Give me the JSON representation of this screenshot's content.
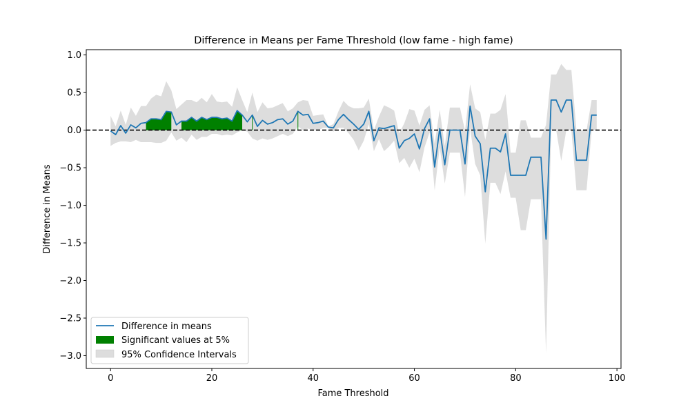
{
  "chart_data": {
    "type": "line",
    "title": "Difference in Means per Fame Threshold (low fame - high fame)",
    "xlabel": "Fame Threshold",
    "ylabel": "Difference in Means",
    "xlim": [
      -4.8,
      100.8
    ],
    "ylim": [
      -3.17,
      1.07
    ],
    "xticks": [
      0,
      20,
      40,
      60,
      80,
      100
    ],
    "yticks": [
      1.0,
      0.5,
      0.0,
      -0.5,
      -1.0,
      -1.5,
      -2.0,
      -2.5,
      -3.0
    ],
    "grid": false,
    "legend_position": "lower-left",
    "reference_line": {
      "y": 0,
      "style": "dashed",
      "color": "#000000"
    },
    "colors": {
      "line": "#1f77b4",
      "significant": "#008000",
      "ci": "#dddddd"
    },
    "legend": [
      {
        "label": "Difference in means",
        "kind": "line"
      },
      {
        "label": "Significant values at 5%",
        "kind": "fill-significant"
      },
      {
        "label": "95% Confidence Intervals",
        "kind": "fill-ci"
      }
    ],
    "x": [
      0,
      1,
      2,
      3,
      4,
      5,
      6,
      7,
      8,
      9,
      10,
      11,
      12,
      13,
      14,
      15,
      16,
      17,
      18,
      19,
      20,
      21,
      22,
      23,
      24,
      25,
      26,
      27,
      28,
      29,
      30,
      31,
      32,
      33,
      34,
      35,
      36,
      37,
      38,
      39,
      40,
      41,
      42,
      43,
      44,
      45,
      46,
      47,
      48,
      49,
      50,
      51,
      52,
      53,
      54,
      55,
      56,
      57,
      58,
      59,
      60,
      61,
      62,
      63,
      64,
      65,
      66,
      67,
      68,
      69,
      70,
      71,
      72,
      73,
      74,
      75,
      76,
      77,
      78,
      79,
      80,
      81,
      82,
      83,
      84,
      85,
      86,
      87,
      88,
      89,
      90,
      91,
      92,
      93,
      94,
      95,
      96
    ],
    "series": [
      {
        "values": [
          -0.01,
          -0.06,
          0.06,
          -0.04,
          0.07,
          0.03,
          0.09,
          0.1,
          0.15,
          0.15,
          0.14,
          0.25,
          0.24,
          0.07,
          0.12,
          0.12,
          0.17,
          0.12,
          0.17,
          0.14,
          0.17,
          0.17,
          0.15,
          0.16,
          0.12,
          0.26,
          0.2,
          0.11,
          0.2,
          0.05,
          0.13,
          0.08,
          0.1,
          0.14,
          0.15,
          0.08,
          0.12,
          0.25,
          0.2,
          0.21,
          0.09,
          0.1,
          0.12,
          0.04,
          0.03,
          0.14,
          0.21,
          0.14,
          0.08,
          0.01,
          0.08,
          0.25,
          -0.14,
          0.03,
          0.02,
          0.04,
          0.06,
          -0.24,
          -0.14,
          -0.11,
          -0.05,
          -0.25,
          0.02,
          0.15,
          -0.49,
          0.02,
          -0.46,
          0.0,
          0.0,
          0.0,
          -0.45,
          0.32,
          -0.08,
          -0.18,
          -0.82,
          -0.24,
          -0.24,
          -0.29,
          -0.05,
          -0.6,
          -0.6,
          -0.6,
          -0.6,
          -0.36,
          -0.36,
          -0.36,
          -1.45,
          0.4,
          0.4,
          0.24,
          0.4,
          0.4,
          -0.4,
          -0.4,
          -0.4,
          0.2,
          0.2
        ],
        "ci_low": [
          -0.21,
          -0.17,
          -0.15,
          -0.15,
          -0.16,
          -0.13,
          -0.16,
          -0.16,
          -0.16,
          -0.17,
          -0.17,
          -0.14,
          -0.03,
          -0.14,
          -0.1,
          -0.16,
          -0.06,
          -0.13,
          -0.09,
          -0.09,
          -0.05,
          -0.05,
          -0.07,
          -0.06,
          -0.07,
          -0.03,
          0.0,
          -0.02,
          -0.11,
          -0.14,
          -0.11,
          -0.13,
          -0.11,
          -0.08,
          -0.05,
          -0.08,
          -0.05,
          0.05,
          0.0,
          0.02,
          0.0,
          0.0,
          0.03,
          0.03,
          -0.02,
          0.03,
          0.03,
          -0.04,
          -0.13,
          -0.27,
          -0.14,
          0.08,
          -0.28,
          -0.12,
          -0.28,
          -0.22,
          -0.14,
          -0.44,
          -0.37,
          -0.5,
          -0.38,
          -0.56,
          -0.23,
          -0.03,
          -0.8,
          -0.23,
          -0.71,
          -0.3,
          -0.3,
          -0.3,
          -0.89,
          0.03,
          -0.45,
          -0.6,
          -1.51,
          -0.7,
          -0.7,
          -0.85,
          -0.55,
          -0.9,
          -0.9,
          -1.33,
          -1.33,
          -0.92,
          -0.92,
          -0.92,
          -2.97,
          0.0,
          0.0,
          -0.41,
          0.0,
          0.0,
          -0.8,
          -0.8,
          -0.8,
          0.0,
          0.0
        ],
        "ci_high": [
          0.19,
          0.05,
          0.26,
          0.07,
          0.3,
          0.19,
          0.32,
          0.32,
          0.42,
          0.47,
          0.45,
          0.65,
          0.53,
          0.28,
          0.34,
          0.4,
          0.4,
          0.37,
          0.43,
          0.37,
          0.48,
          0.38,
          0.37,
          0.38,
          0.31,
          0.57,
          0.4,
          0.24,
          0.5,
          0.24,
          0.37,
          0.29,
          0.3,
          0.33,
          0.36,
          0.25,
          0.29,
          0.37,
          0.4,
          0.39,
          0.19,
          0.2,
          0.21,
          0.05,
          0.08,
          0.25,
          0.39,
          0.32,
          0.29,
          0.29,
          0.3,
          0.42,
          0.0,
          0.18,
          0.33,
          0.3,
          0.26,
          -0.04,
          0.09,
          0.28,
          0.26,
          0.06,
          0.27,
          0.33,
          -0.18,
          0.27,
          -0.21,
          0.3,
          0.3,
          0.3,
          -0.01,
          0.61,
          0.29,
          0.24,
          -0.13,
          0.22,
          0.22,
          0.27,
          0.48,
          -0.3,
          -0.3,
          0.13,
          0.13,
          -0.1,
          -0.1,
          -0.1,
          0.07,
          0.74,
          0.74,
          0.88,
          0.8,
          0.8,
          0.0,
          0.0,
          0.0,
          0.4,
          0.4
        ]
      }
    ],
    "significant_ranges": [
      [
        7,
        12
      ],
      [
        14,
        26
      ],
      [
        28,
        28
      ],
      [
        37,
        37
      ]
    ]
  }
}
